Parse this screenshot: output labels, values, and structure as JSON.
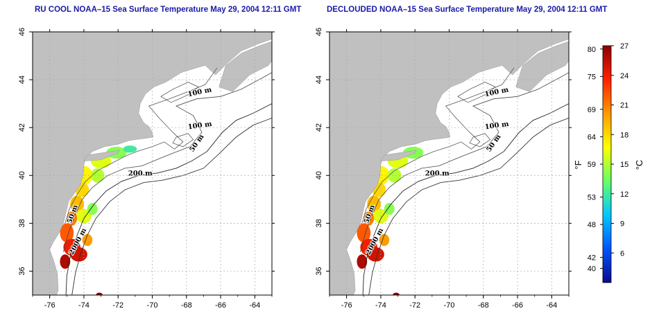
{
  "maps": [
    {
      "title": "RU COOL NOAA–15 Sea Surface Temperature May 29, 2004 12:11 GMT"
    },
    {
      "title": "DECLOUDED NOAA–15 Sea Surface Temperature May 29, 2004 12:11 GMT"
    }
  ],
  "axes": {
    "x_ticks": [
      "-76",
      "-74",
      "-72",
      "-70",
      "-68",
      "-66",
      "-64"
    ],
    "y_ticks": [
      "36",
      "38",
      "40",
      "42",
      "44",
      "46"
    ],
    "x_range": [
      -77.0,
      -63.0
    ],
    "y_range": [
      35.0,
      46.0
    ],
    "grid": true
  },
  "contours": {
    "labels": [
      "100 m",
      "100 m",
      "50 m",
      "200 m",
      "50 m",
      "2000 m"
    ]
  },
  "colorbar": {
    "fahrenheit_label": "°F",
    "celsius_label": "°C",
    "fahrenheit_ticks": [
      "80",
      "75",
      "69",
      "64",
      "59",
      "53",
      "48",
      "42",
      "40"
    ],
    "celsius_ticks": [
      "27",
      "24",
      "21",
      "18",
      "15",
      "12",
      "9",
      "6"
    ],
    "celsius_range": [
      3,
      27
    ],
    "colors": [
      "#0a0a8c",
      "#0055ff",
      "#00c8ff",
      "#66ff66",
      "#ffff00",
      "#ff9900",
      "#ff2200",
      "#8b0000"
    ]
  },
  "colors": {
    "land": "#c0c0c0",
    "ocean": "#ffffff",
    "title": "#1a1aa8",
    "grid": "#aaaaaa"
  }
}
